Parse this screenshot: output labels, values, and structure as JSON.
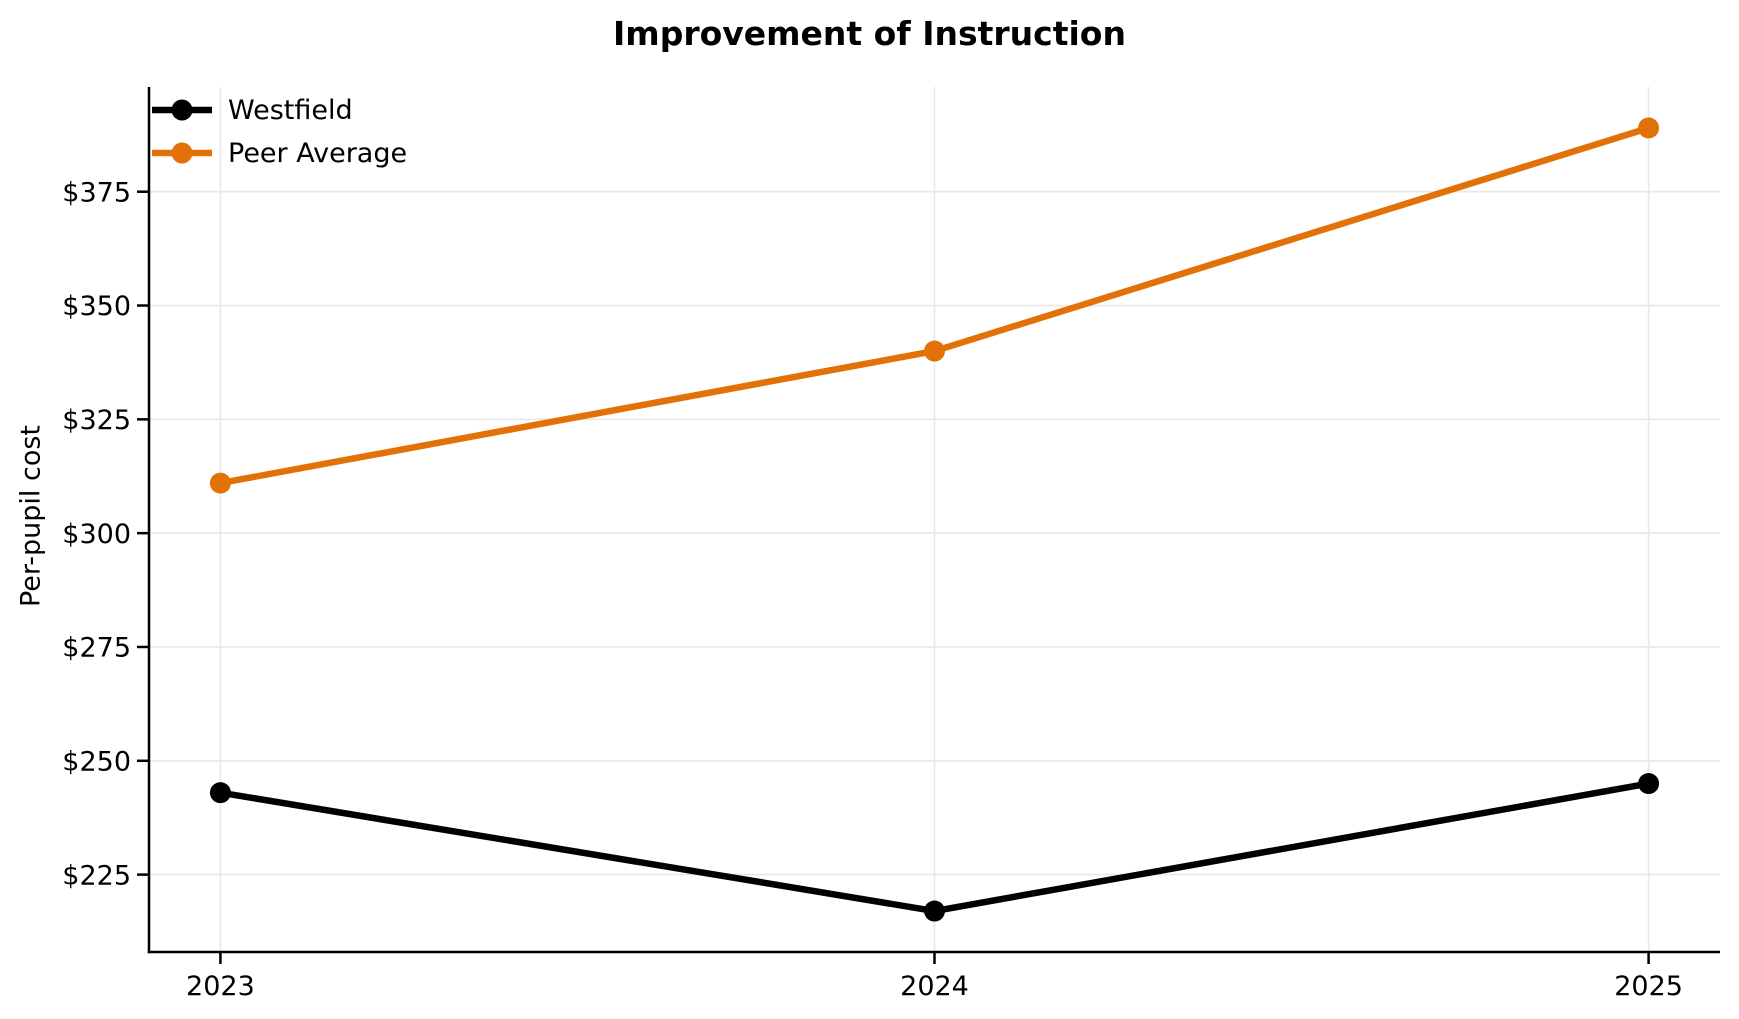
{
  "chart_data": {
    "type": "line",
    "title": "Improvement of Instruction",
    "xlabel": "",
    "ylabel": "Per-pupil cost",
    "x": [
      2023,
      2024,
      2025
    ],
    "x_tick_labels": [
      "2023",
      "2024",
      "2025"
    ],
    "y_ticks": [
      225,
      250,
      275,
      300,
      325,
      350,
      375
    ],
    "y_tick_labels": [
      "$225",
      "$250",
      "$275",
      "$300",
      "$325",
      "$350",
      "$375"
    ],
    "xlim": [
      2022.9,
      2025.1
    ],
    "ylim": [
      208,
      398
    ],
    "grid": true,
    "legend_position": "upper left",
    "series": [
      {
        "name": "Westfield",
        "color": "#000000",
        "values": [
          243,
          217,
          245
        ]
      },
      {
        "name": "Peer Average",
        "color": "#E27107",
        "values": [
          311,
          340,
          389
        ]
      }
    ],
    "colors": {
      "grid": "#E8E8E8",
      "spine": "#000000",
      "text": "#000000",
      "background": "#FFFFFF"
    }
  }
}
